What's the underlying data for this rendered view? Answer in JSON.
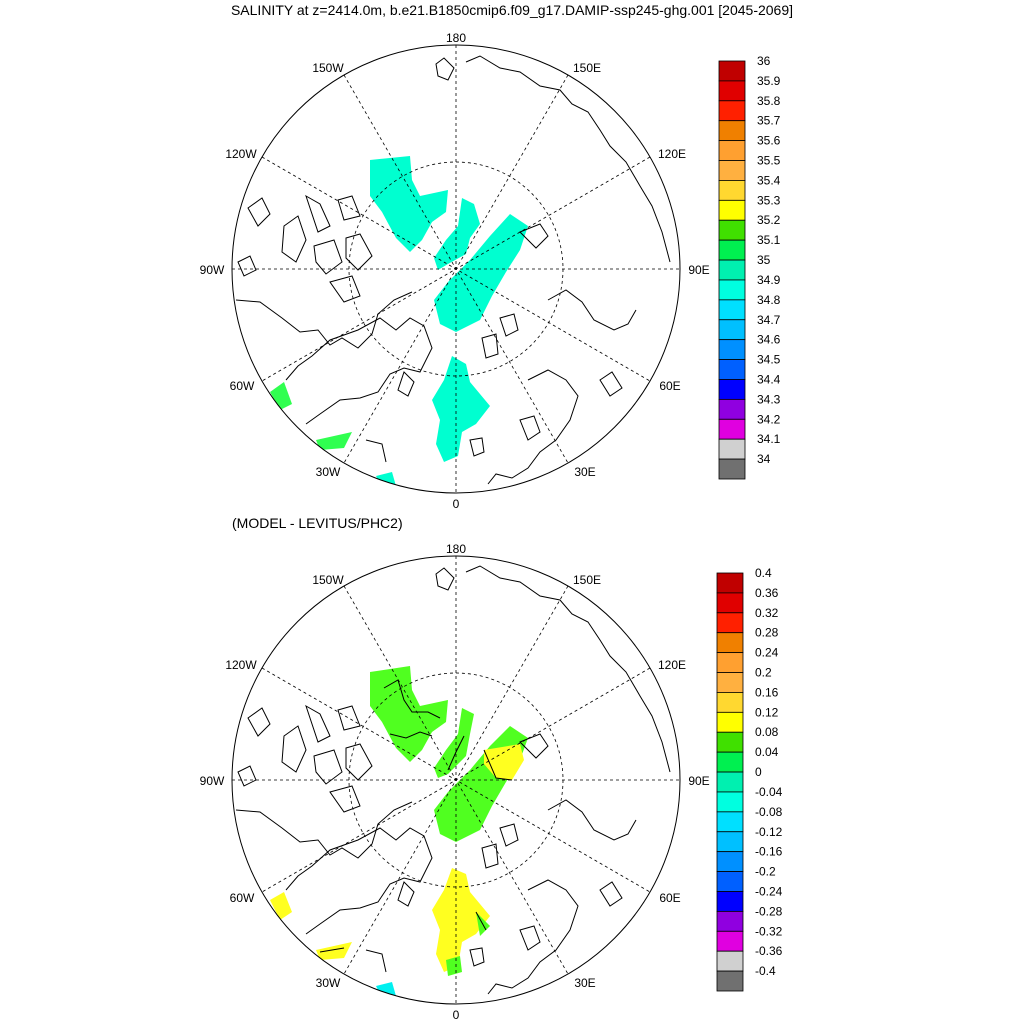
{
  "title": "SALINITY at z=2414.0m, b.e21.B1850cmip6.f09_g17.DAMIP-ssp245-ghg.001 [2045-2069]",
  "subtitle": "(MODEL - LEVITUS/PHC2)",
  "longitude_labels": {
    "lon_180": "180",
    "lon_150W": "150W",
    "lon_150E": "150E",
    "lon_120W": "120W",
    "lon_120E": "120E",
    "lon_90W": "90W",
    "lon_90E": "90E",
    "lon_60W": "60W",
    "lon_60E": "60E",
    "lon_30W": "30W",
    "lon_30E": "30E",
    "lon_0": "0"
  },
  "top_colorbar": {
    "labels": [
      "36",
      "35.9",
      "35.8",
      "35.7",
      "35.6",
      "35.5",
      "35.4",
      "35.3",
      "35.2",
      "35.1",
      "35",
      "34.9",
      "34.8",
      "34.7",
      "34.6",
      "34.5",
      "34.4",
      "34.3",
      "34.2",
      "34.1",
      "34"
    ]
  },
  "bottom_colorbar": {
    "labels": [
      "0.4",
      "0.36",
      "0.32",
      "0.28",
      "0.24",
      "0.2",
      "0.16",
      "0.12",
      "0.08",
      "0.04",
      "0",
      "-0.04",
      "-0.08",
      "-0.12",
      "-0.16",
      "-0.2",
      "-0.24",
      "-0.28",
      "-0.32",
      "-0.36",
      "-0.4"
    ]
  },
  "colorbar_colors": [
    "#c00000",
    "#e00000",
    "#ff2000",
    "#f08000",
    "#ffa030",
    "#ffb040",
    "#ffd830",
    "#ffff00",
    "#40e000",
    "#00f050",
    "#00f0b0",
    "#00ffe0",
    "#00e0ff",
    "#00c0ff",
    "#0090ff",
    "#0060ff",
    "#0000ff",
    "#9000e0",
    "#e000e0",
    "#d0d0d0",
    "#707070"
  ],
  "field_colors": {
    "top_main": "#00ffd0",
    "top_edge": "#30ff50",
    "bottom_green": "#50ff20",
    "bottom_yellow": "#ffff20",
    "bottom_cyan": "#00f0f0"
  }
}
